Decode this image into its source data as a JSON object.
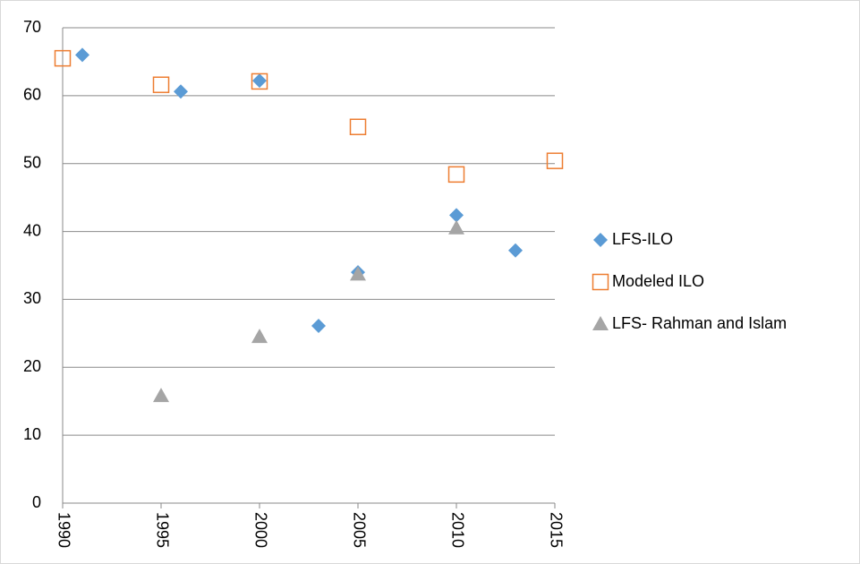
{
  "chart_data": {
    "type": "scatter",
    "xlim": [
      1990,
      2015
    ],
    "xticks": [
      1990,
      1995,
      2000,
      2005,
      2010,
      2015
    ],
    "ylim": [
      0,
      70
    ],
    "yticks": [
      0,
      10,
      20,
      30,
      40,
      50,
      60,
      70
    ],
    "grid": true,
    "legend": "right",
    "series": [
      {
        "name": "LFS-ILO",
        "color": "#5b9bd5",
        "marker": "diamond",
        "x": [
          1991,
          1996,
          2000,
          2003,
          2005,
          2010,
          2013
        ],
        "values": [
          66.0,
          60.6,
          62.2,
          26.1,
          34.0,
          42.4,
          37.2
        ]
      },
      {
        "name": "Modeled ILO",
        "color": "#ed7d31",
        "marker": "square-open",
        "x": [
          1990,
          1995,
          2000,
          2005,
          2010,
          2015
        ],
        "values": [
          65.5,
          61.6,
          62.1,
          55.4,
          48.4,
          50.4
        ]
      },
      {
        "name": "LFS- Rahman and Islam",
        "color": "#a5a5a5",
        "marker": "triangle",
        "x": [
          1995,
          2000,
          2005,
          2010
        ],
        "values": [
          15.8,
          24.5,
          33.7,
          40.5
        ]
      }
    ]
  }
}
